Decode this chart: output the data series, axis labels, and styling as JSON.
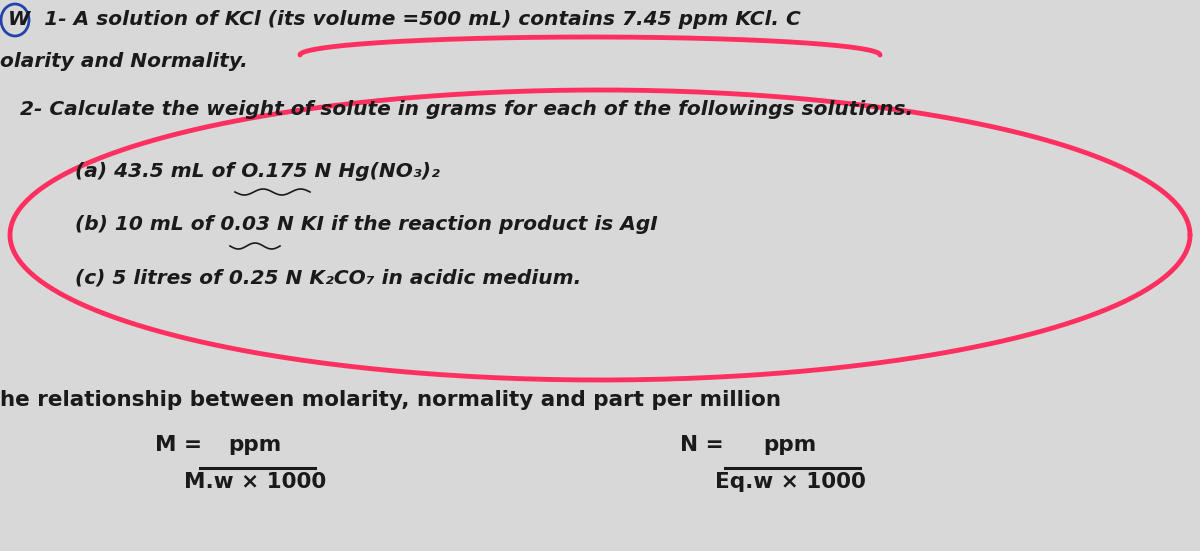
{
  "bg_color": "#d8d8d8",
  "text_color": "#1a1a1a",
  "pink_color": "#ff3060",
  "line1": "W  1- A solution of KCl (its volume =500 mL) contains 7.45 ppm KCl. C",
  "line2": "olarity and Normality.",
  "section2_title": "2- Calculate the weight of solute in grams for each of the followings solutions.",
  "item_a": "(a) 43.5 mL of O.175 N Hg(NO₃)₂",
  "item_b": "(b) 10 mL of 0.03 N KI if the reaction product is AgI",
  "item_c": "(c) 5 litres of 0.25 N K₂CO₇ in acidic medium.",
  "rel_line": "he relationship between molarity, normality and part per million",
  "formula_M_left": "M =",
  "formula_M_num": "ppm",
  "formula_M_den": "M.w × 1000",
  "formula_N_left": "N =",
  "formula_N_num": "ppm",
  "formula_N_den": "Eq.w × 1000",
  "figsize": [
    12.0,
    5.51
  ],
  "dpi": 100
}
